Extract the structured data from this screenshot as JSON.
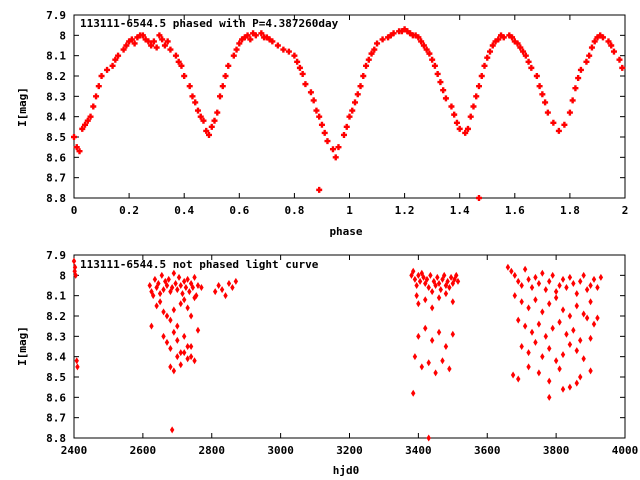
{
  "chart_data": [
    {
      "type": "scatter",
      "title": "113111-6544.5 phased with P=4.387260day",
      "xlabel": "phase",
      "ylabel": "I[mag]",
      "xlim": [
        0,
        2
      ],
      "ylim": [
        7.9,
        8.8
      ],
      "y_inverted": true,
      "grid": false,
      "marker_color": "#ff0000",
      "xticks": [
        "0",
        "0.2",
        "0.4",
        "0.6",
        "0.8",
        "1",
        "1.2",
        "1.4",
        "1.6",
        "1.8",
        "2"
      ],
      "yticks": [
        "7.9",
        "8",
        "8.1",
        "8.2",
        "8.3",
        "8.4",
        "8.5",
        "8.6",
        "8.7",
        "8.8"
      ],
      "x": [
        0.0,
        0.01,
        0.02,
        0.03,
        0.04,
        0.05,
        0.06,
        0.07,
        0.08,
        0.09,
        0.1,
        0.12,
        0.14,
        0.15,
        0.16,
        0.18,
        0.19,
        0.2,
        0.21,
        0.22,
        0.23,
        0.24,
        0.25,
        0.26,
        0.27,
        0.28,
        0.29,
        0.3,
        0.31,
        0.32,
        0.33,
        0.34,
        0.35,
        0.37,
        0.38,
        0.39,
        0.4,
        0.42,
        0.43,
        0.44,
        0.45,
        0.46,
        0.47,
        0.48,
        0.49,
        0.5,
        0.51,
        0.52,
        0.53,
        0.54,
        0.55,
        0.56,
        0.58,
        0.59,
        0.6,
        0.61,
        0.62,
        0.63,
        0.64,
        0.65,
        0.66,
        0.68,
        0.69,
        0.7,
        0.71,
        0.72,
        0.74,
        0.76,
        0.78,
        0.8,
        0.81,
        0.82,
        0.83,
        0.84,
        0.86,
        0.87,
        0.88,
        0.89,
        0.9,
        0.91,
        0.92,
        0.94,
        0.95,
        0.96,
        0.98,
        0.99,
        1.0,
        1.01,
        1.02,
        1.03,
        1.04,
        1.05,
        1.06,
        1.07,
        1.08,
        1.09,
        1.1,
        1.12,
        1.14,
        1.15,
        1.16,
        1.18,
        1.19,
        1.2,
        1.21,
        1.22,
        1.23,
        1.24,
        1.25,
        1.26,
        1.27,
        1.28,
        1.29,
        1.3,
        1.31,
        1.32,
        1.33,
        1.34,
        1.35,
        1.37,
        1.38,
        1.39,
        1.4,
        1.42,
        1.43,
        1.44,
        1.45,
        1.46,
        1.47,
        1.48,
        1.49,
        1.5,
        1.51,
        1.52,
        1.53,
        1.54,
        1.55,
        1.56,
        1.58,
        1.59,
        1.6,
        1.61,
        1.62,
        1.63,
        1.64,
        1.65,
        1.66,
        1.68,
        1.69,
        1.7,
        1.71,
        1.72,
        1.74,
        1.76,
        1.78,
        1.8,
        1.81,
        1.82,
        1.83,
        1.84,
        1.86,
        1.87,
        1.88,
        1.89,
        1.9,
        1.91,
        1.92,
        1.94,
        1.95,
        1.96,
        1.98,
        1.99,
        0.89,
        1.47
      ],
      "y": [
        8.5,
        8.55,
        8.57,
        8.46,
        8.44,
        8.42,
        8.4,
        8.35,
        8.3,
        8.25,
        8.2,
        8.17,
        8.15,
        8.12,
        8.1,
        8.07,
        8.05,
        8.03,
        8.02,
        8.04,
        8.01,
        8.0,
        8.0,
        8.02,
        8.03,
        8.05,
        8.03,
        8.06,
        8.0,
        8.02,
        8.05,
        8.03,
        8.07,
        8.1,
        8.13,
        8.15,
        8.2,
        8.25,
        8.3,
        8.33,
        8.37,
        8.4,
        8.42,
        8.47,
        8.49,
        8.45,
        8.42,
        8.38,
        8.3,
        8.25,
        8.2,
        8.15,
        8.1,
        8.07,
        8.04,
        8.02,
        8.01,
        8.0,
        8.02,
        7.99,
        8.0,
        7.99,
        8.01,
        8.01,
        8.02,
        8.03,
        8.05,
        8.07,
        8.08,
        8.1,
        8.13,
        8.16,
        8.19,
        8.24,
        8.28,
        8.32,
        8.37,
        8.4,
        8.44,
        8.48,
        8.52,
        8.56,
        8.6,
        8.55,
        8.49,
        8.45,
        8.4,
        8.37,
        8.33,
        8.29,
        8.25,
        8.2,
        8.15,
        8.12,
        8.09,
        8.07,
        8.04,
        8.02,
        8.01,
        8.0,
        7.99,
        7.98,
        7.98,
        7.97,
        7.98,
        7.99,
        8.0,
        8.0,
        8.01,
        8.03,
        8.05,
        8.07,
        8.09,
        8.12,
        8.15,
        8.19,
        8.23,
        8.27,
        8.31,
        8.35,
        8.39,
        8.43,
        8.46,
        8.48,
        8.46,
        8.4,
        8.35,
        8.3,
        8.25,
        8.2,
        8.15,
        8.11,
        8.08,
        8.05,
        8.03,
        8.02,
        8.0,
        8.01,
        8.0,
        8.01,
        8.03,
        8.04,
        8.06,
        8.08,
        8.1,
        8.13,
        8.16,
        8.2,
        8.25,
        8.29,
        8.33,
        8.38,
        8.43,
        8.47,
        8.44,
        8.38,
        8.32,
        8.26,
        8.21,
        8.17,
        8.13,
        8.1,
        8.06,
        8.03,
        8.01,
        8.0,
        8.01,
        8.03,
        8.05,
        8.08,
        8.12,
        8.16,
        8.76,
        8.8
      ]
    },
    {
      "type": "scatter",
      "title": "113111-6544.5 not phased light curve",
      "xlabel": "hjd0",
      "ylabel": "I[mag]",
      "xlim": [
        2400,
        4000
      ],
      "ylim": [
        7.9,
        8.8
      ],
      "y_inverted": true,
      "grid": false,
      "marker_color": "#ff0000",
      "xticks": [
        "2400",
        "2600",
        "2800",
        "3000",
        "3200",
        "3400",
        "3600",
        "3800",
        "4000"
      ],
      "yticks": [
        "7.9",
        "8",
        "8.1",
        "8.2",
        "8.3",
        "8.4",
        "8.5",
        "8.6",
        "8.7",
        "8.8"
      ],
      "x": [
        2400,
        2402,
        2405,
        2408,
        2410,
        2403,
        2620,
        2625,
        2630,
        2635,
        2640,
        2645,
        2650,
        2655,
        2660,
        2665,
        2670,
        2675,
        2680,
        2685,
        2690,
        2695,
        2700,
        2705,
        2710,
        2715,
        2720,
        2725,
        2730,
        2735,
        2740,
        2745,
        2750,
        2755,
        2760,
        2640,
        2650,
        2660,
        2670,
        2680,
        2690,
        2700,
        2710,
        2720,
        2730,
        2740,
        2750,
        2660,
        2670,
        2680,
        2690,
        2700,
        2710,
        2720,
        2730,
        2740,
        2750,
        2680,
        2690,
        2700,
        2710,
        2720,
        2730,
        2740,
        2760,
        2770,
        2810,
        2820,
        2830,
        2840,
        2850,
        2860,
        2870,
        2685,
        2625,
        3380,
        3385,
        3390,
        3395,
        3400,
        3405,
        3410,
        3415,
        3420,
        3425,
        3430,
        3435,
        3440,
        3445,
        3450,
        3455,
        3460,
        3465,
        3470,
        3475,
        3480,
        3485,
        3490,
        3495,
        3500,
        3505,
        3510,
        3515,
        3395,
        3400,
        3420,
        3440,
        3460,
        3480,
        3500,
        3400,
        3420,
        3440,
        3460,
        3480,
        3500,
        3390,
        3410,
        3430,
        3450,
        3470,
        3490,
        3385,
        3430,
        3660,
        3670,
        3680,
        3690,
        3700,
        3710,
        3720,
        3730,
        3740,
        3750,
        3760,
        3770,
        3780,
        3790,
        3800,
        3810,
        3820,
        3830,
        3840,
        3850,
        3860,
        3870,
        3880,
        3890,
        3900,
        3910,
        3920,
        3930,
        3680,
        3700,
        3720,
        3740,
        3760,
        3780,
        3800,
        3820,
        3840,
        3860,
        3880,
        3900,
        3920,
        3690,
        3710,
        3730,
        3750,
        3770,
        3790,
        3810,
        3830,
        3850,
        3870,
        3890,
        3910,
        3700,
        3720,
        3740,
        3760,
        3780,
        3800,
        3820,
        3840,
        3860,
        3880,
        3900,
        3720,
        3750,
        3780,
        3810,
        3840,
        3870,
        3900,
        3780,
        3820,
        3860,
        3675,
        3690
      ],
      "y": [
        7.93,
        7.98,
        8.0,
        8.42,
        8.45,
        7.96,
        8.05,
        8.08,
        8.1,
        8.02,
        8.06,
        8.04,
        8.09,
        8.0,
        8.07,
        8.03,
        8.05,
        8.02,
        8.08,
        8.06,
        7.99,
        8.04,
        8.07,
        8.01,
        8.05,
        8.09,
        8.03,
        8.06,
        8.02,
        8.08,
        8.04,
        8.06,
        8.01,
        8.1,
        8.05,
        8.15,
        8.13,
        8.18,
        8.2,
        8.22,
        8.17,
        8.25,
        8.14,
        8.12,
        8.16,
        8.2,
        8.11,
        8.3,
        8.33,
        8.36,
        8.28,
        8.32,
        8.38,
        8.3,
        8.35,
        8.4,
        8.42,
        8.45,
        8.47,
        8.4,
        8.44,
        8.38,
        8.41,
        8.35,
        8.27,
        8.06,
        8.08,
        8.05,
        8.07,
        8.1,
        8.04,
        8.06,
        8.03,
        8.76,
        8.25,
        8.0,
        7.98,
        8.02,
        8.05,
        8.0,
        8.03,
        7.99,
        8.01,
        8.04,
        8.02,
        8.06,
        8.0,
        8.08,
        8.03,
        8.05,
        8.01,
        8.04,
        8.07,
        8.02,
        8.0,
        8.05,
        8.03,
        8.06,
        8.01,
        8.04,
        8.02,
        8.0,
        8.03,
        8.1,
        8.14,
        8.12,
        8.16,
        8.11,
        8.09,
        8.13,
        8.3,
        8.26,
        8.32,
        8.28,
        8.35,
        8.29,
        8.4,
        8.45,
        8.43,
        8.48,
        8.42,
        8.46,
        8.58,
        8.8,
        7.96,
        7.98,
        8.0,
        8.03,
        8.05,
        7.97,
        8.02,
        8.06,
        8.01,
        8.04,
        7.99,
        8.07,
        8.03,
        8.0,
        8.08,
        8.05,
        8.02,
        8.06,
        8.01,
        8.04,
        8.09,
        8.03,
        8.0,
        8.07,
        8.05,
        8.02,
        8.06,
        8.01,
        8.1,
        8.13,
        8.16,
        8.12,
        8.18,
        8.14,
        8.11,
        8.17,
        8.2,
        8.15,
        8.19,
        8.13,
        8.21,
        8.22,
        8.25,
        8.28,
        8.24,
        8.3,
        8.26,
        8.23,
        8.29,
        8.27,
        8.32,
        8.21,
        8.24,
        8.35,
        8.38,
        8.33,
        8.4,
        8.36,
        8.42,
        8.39,
        8.34,
        8.37,
        8.41,
        8.31,
        8.45,
        8.48,
        8.52,
        8.46,
        8.55,
        8.5,
        8.47,
        8.6,
        8.56,
        8.53,
        8.49,
        8.51
      ]
    }
  ]
}
